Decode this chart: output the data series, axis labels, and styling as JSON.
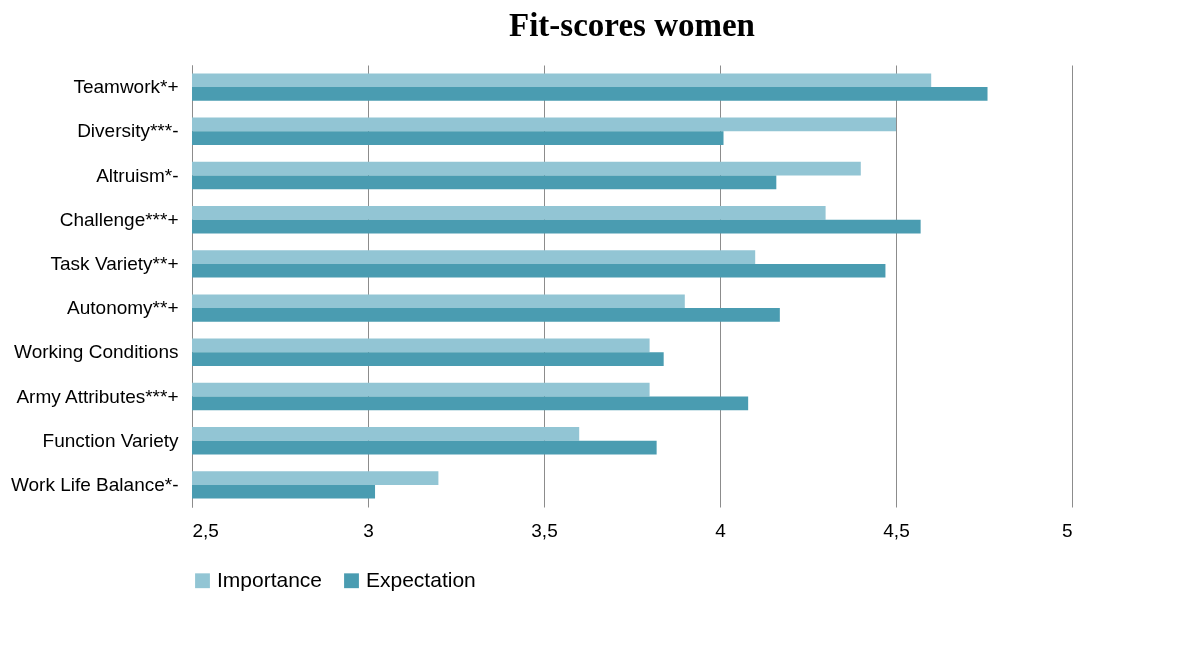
{
  "chart_data": {
    "type": "bar",
    "orientation": "horizontal",
    "title": "Fit-scores women",
    "categories": [
      "Teamwork*+",
      "Diversity***-",
      "Altruism*-",
      "Challenge***+",
      "Task Variety**+",
      "Autonomy**+",
      "Working Conditions",
      "Army Attributes***+",
      "Function Variety",
      "Work Life Balance*-"
    ],
    "series": [
      {
        "name": "Importance",
        "color": "#92c5d4",
        "values": [
          4.6,
          4.5,
          4.4,
          4.3,
          4.1,
          3.9,
          3.8,
          3.8,
          3.6,
          3.2
        ]
      },
      {
        "name": "Expectation",
        "color": "#4a9cb1",
        "values": [
          4.76,
          4.01,
          4.16,
          4.57,
          4.47,
          4.17,
          3.84,
          4.08,
          3.82,
          3.02
        ]
      }
    ],
    "xlim": [
      2.5,
      5
    ],
    "xticks": [
      {
        "value": 2.5,
        "label": "2,5"
      },
      3,
      {
        "value": 3.5,
        "label": "3,5"
      },
      4,
      {
        "value": 4.5,
        "label": "4,5"
      },
      5
    ],
    "grid": "x",
    "legend": "bottom"
  }
}
